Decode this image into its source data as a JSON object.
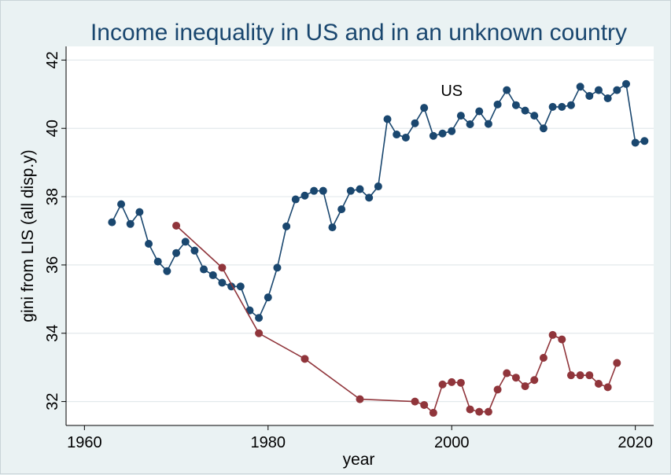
{
  "chart_data": {
    "type": "line",
    "title": "Income inequality in US and in an unknown country",
    "xlabel": "year",
    "ylabel": "gini from LIS (all disp.y)",
    "xlim": [
      1958,
      2022
    ],
    "ylim": [
      31.3,
      42.4
    ],
    "xticks": [
      1960,
      1980,
      2000,
      2020
    ],
    "yticks": [
      32,
      34,
      36,
      38,
      40,
      42
    ],
    "grid": true,
    "legend": "none",
    "annotations": [
      {
        "text": "US",
        "x": 2000,
        "y": 40.95
      }
    ],
    "colors": {
      "us": "#1a476f",
      "unknown": "#90353b",
      "background": "#eaf2f3",
      "plot_area": "#ffffff"
    },
    "series": [
      {
        "x": [
          1963,
          1964,
          1965,
          1966,
          1967,
          1968,
          1969,
          1970,
          1971,
          1972,
          1973,
          1974,
          1975,
          1976,
          1977,
          1978,
          1979,
          1980,
          1981,
          1982,
          1983,
          1984,
          1985,
          1986,
          1987,
          1988,
          1989,
          1990,
          1991,
          1992,
          1993,
          1994,
          1995,
          1996,
          1997,
          1998,
          1999,
          2000,
          2001,
          2002,
          2003,
          2004,
          2005,
          2006,
          2007,
          2008,
          2009,
          2010,
          2011,
          2012,
          2013,
          2014,
          2015,
          2016,
          2017,
          2018,
          2019,
          2020,
          2021
        ],
        "values": [
          37.25,
          37.78,
          37.2,
          37.55,
          36.62,
          36.1,
          35.82,
          36.35,
          36.68,
          36.42,
          35.87,
          35.7,
          35.48,
          35.37,
          35.37,
          34.67,
          34.45,
          35.05,
          35.92,
          37.13,
          37.92,
          38.03,
          38.17,
          38.17,
          37.1,
          37.63,
          38.17,
          38.22,
          37.97,
          38.3,
          40.27,
          39.82,
          39.73,
          40.15,
          40.6,
          39.78,
          39.85,
          39.92,
          40.37,
          40.12,
          40.5,
          40.13,
          40.7,
          41.12,
          40.68,
          40.52,
          40.37,
          40.0,
          40.63,
          40.63,
          40.68,
          41.22,
          40.95,
          41.12,
          40.88,
          41.12,
          41.3,
          39.58,
          39.63
        ]
      },
      {
        "x": [
          1970,
          1975,
          1979,
          1984,
          1990,
          1996,
          1997,
          1998,
          1999,
          2000,
          2001,
          2002,
          2003,
          2004,
          2005,
          2006,
          2007,
          2008,
          2009,
          2010,
          2011,
          2012,
          2013,
          2014,
          2015,
          2016,
          2017,
          2018
        ],
        "values": [
          37.15,
          35.92,
          34.0,
          33.25,
          32.07,
          32.0,
          31.9,
          31.67,
          32.5,
          32.57,
          32.55,
          31.77,
          31.7,
          31.7,
          32.35,
          32.83,
          32.7,
          32.45,
          32.63,
          33.28,
          33.95,
          33.82,
          32.77,
          32.77,
          32.77,
          32.52,
          32.42,
          33.13
        ]
      }
    ]
  }
}
